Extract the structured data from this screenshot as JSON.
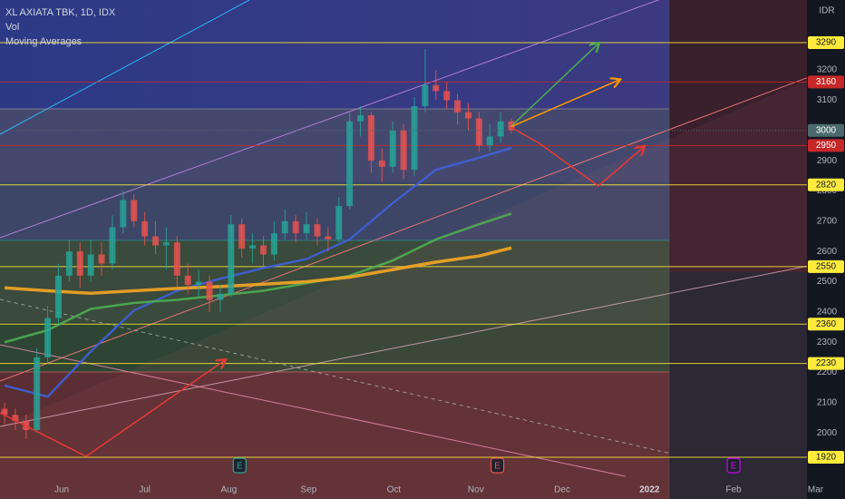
{
  "chart_data": {
    "type": "candlestick",
    "title": "XL AXIATA TBK, 1D, IDX",
    "indicators": [
      "Vol",
      "Moving Averages"
    ],
    "currency": "IDR",
    "up_color": "#26a69a",
    "down_color": "#ef5350",
    "x": [
      0,
      1,
      2,
      3,
      4,
      5,
      6,
      7,
      8,
      9,
      10,
      11,
      12,
      13,
      14,
      15,
      16,
      17,
      18,
      19,
      20,
      21,
      22,
      23,
      24,
      25,
      26,
      27,
      28,
      29,
      30,
      31,
      32,
      33,
      34,
      35,
      36,
      37,
      38,
      39,
      40,
      41,
      42,
      43,
      44,
      45,
      46,
      47
    ],
    "open": [
      2080,
      2060,
      2040,
      2010,
      2250,
      2380,
      2520,
      2600,
      2520,
      2590,
      2560,
      2680,
      2770,
      2700,
      2650,
      2620,
      2630,
      2520,
      2490,
      2500,
      2440,
      2460,
      2690,
      2610,
      2620,
      2590,
      2660,
      2700,
      2660,
      2690,
      2650,
      2640,
      2750,
      3030,
      3050,
      2900,
      2880,
      3000,
      2870,
      3080,
      3150,
      3130,
      3100,
      3060,
      3040,
      2950,
      2980,
      3030
    ],
    "high": [
      2100,
      2080,
      2060,
      2280,
      2420,
      2560,
      2640,
      2630,
      2640,
      2630,
      2720,
      2800,
      2790,
      2730,
      2700,
      2680,
      2650,
      2560,
      2540,
      2520,
      2490,
      2720,
      2710,
      2660,
      2650,
      2700,
      2740,
      2720,
      2730,
      2710,
      2680,
      2780,
      3060,
      3080,
      3060,
      2940,
      3030,
      3020,
      3110,
      3270,
      3200,
      3160,
      3120,
      3090,
      3060,
      3020,
      3060,
      3040
    ],
    "low": [
      2030,
      2010,
      1980,
      2000,
      2230,
      2360,
      2500,
      2480,
      2500,
      2520,
      2540,
      2660,
      2680,
      2620,
      2590,
      2540,
      2480,
      2460,
      2450,
      2400,
      2400,
      2450,
      2580,
      2560,
      2550,
      2570,
      2640,
      2630,
      2640,
      2620,
      2600,
      2630,
      2740,
      2980,
      2860,
      2830,
      2860,
      2840,
      2850,
      3060,
      3100,
      3070,
      3020,
      3000,
      2930,
      2930,
      2960,
      2990
    ],
    "close": [
      2060,
      2040,
      2010,
      2250,
      2380,
      2520,
      2600,
      2520,
      2590,
      2560,
      2680,
      2770,
      2700,
      2650,
      2620,
      2630,
      2520,
      2490,
      2500,
      2440,
      2460,
      2690,
      2610,
      2620,
      2590,
      2660,
      2700,
      2660,
      2690,
      2650,
      2640,
      2750,
      3030,
      3050,
      2900,
      2880,
      3000,
      2870,
      3080,
      3150,
      3130,
      3100,
      3060,
      3040,
      2950,
      2980,
      3030,
      3000
    ],
    "moving_averages": [
      {
        "color": "#3f5fd8",
        "x": [
          0,
          4,
          8,
          12,
          16,
          20,
          24,
          28,
          32,
          36,
          40,
          44,
          47
        ],
        "values": [
          2157,
          2120,
          2270,
          2405,
          2470,
          2510,
          2545,
          2575,
          2640,
          2760,
          2870,
          2910,
          2942
        ]
      },
      {
        "color": "#4caf50",
        "x": [
          0,
          4,
          8,
          12,
          16,
          20,
          24,
          28,
          32,
          36,
          40,
          44,
          47
        ],
        "values": [
          2300,
          2340,
          2410,
          2430,
          2440,
          2455,
          2470,
          2495,
          2520,
          2570,
          2640,
          2690,
          2725
        ]
      },
      {
        "color": "#f5a623",
        "x": [
          0,
          4,
          8,
          12,
          16,
          20,
          24,
          28,
          32,
          36,
          40,
          44,
          47
        ],
        "values": [
          2480,
          2470,
          2462,
          2470,
          2478,
          2484,
          2492,
          2500,
          2515,
          2540,
          2565,
          2585,
          2612
        ]
      }
    ],
    "levels": [
      {
        "value": 3290,
        "color": "#ffeb3b"
      },
      {
        "value": 3160,
        "color": "#c62828"
      },
      {
        "value": 2950,
        "color": "#c62828"
      },
      {
        "value": 2820,
        "color": "#ffeb3b"
      },
      {
        "value": 2550,
        "color": "#ffeb3b"
      },
      {
        "value": 2360,
        "color": "#ffeb3b"
      },
      {
        "value": 2230,
        "color": "#ffeb3b"
      },
      {
        "value": 1920,
        "color": "#ffeb3b"
      }
    ],
    "last_price_color": "#4a6a6e",
    "earnings": [
      {
        "x": 21.8,
        "label": "E",
        "color": "#26a69a"
      },
      {
        "x": 45.7,
        "label": "E",
        "color": "#ef5350"
      },
      {
        "x": 67.6,
        "label": "E",
        "color": "#d500f9"
      }
    ],
    "xlim": [
      -0.42,
      74.4
    ],
    "xticks": [
      {
        "value": 5.3,
        "label": "Jun"
      },
      {
        "value": 13,
        "label": "Jul"
      },
      {
        "value": 20.8,
        "label": "Aug"
      },
      {
        "value": 28.2,
        "label": "Sep"
      },
      {
        "value": 36.1,
        "label": "Oct"
      },
      {
        "value": 43.7,
        "label": "Nov"
      },
      {
        "value": 51.7,
        "label": "Dec"
      },
      {
        "value": 59.8,
        "label": "2022"
      },
      {
        "value": 67.6,
        "label": "Feb"
      },
      {
        "value": 75.2,
        "label": "Mar"
      }
    ],
    "ylim": [
      1827,
      3431
    ],
    "yticks": [
      2000,
      2100,
      2200,
      2300,
      2400,
      2500,
      2600,
      2700,
      2800,
      2900,
      3000,
      3100,
      3200
    ],
    "grid": false
  }
}
